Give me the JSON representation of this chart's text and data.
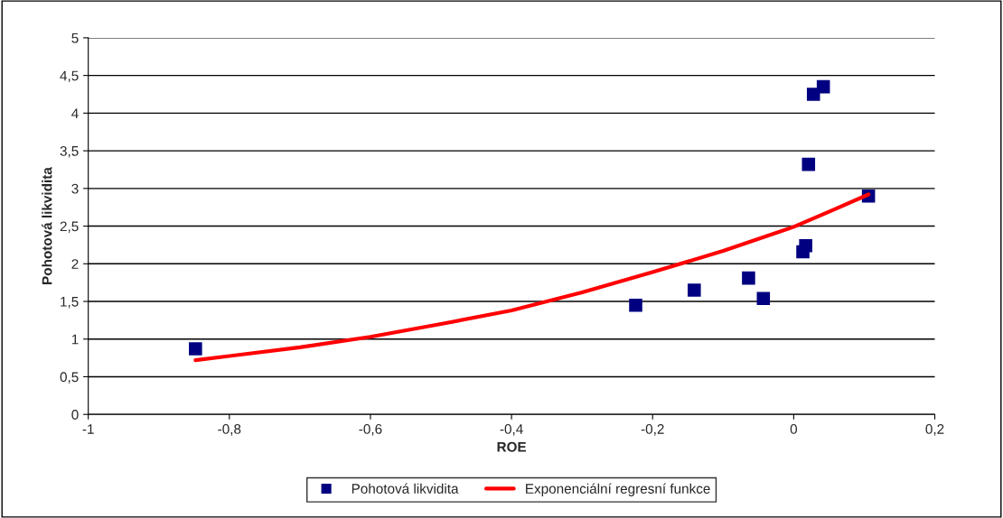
{
  "chart_data": {
    "type": "scatter",
    "xlabel": "ROE",
    "ylabel": "Pohotová likvidita",
    "xlim": [
      -1,
      0.2
    ],
    "xticks": [
      {
        "value": -1,
        "label": "-1"
      },
      {
        "value": -0.8,
        "label": "-0,8"
      },
      {
        "value": -0.6,
        "label": "-0,6"
      },
      {
        "value": -0.4,
        "label": "-0,4"
      },
      {
        "value": -0.2,
        "label": "-0,2"
      },
      {
        "value": 0,
        "label": "0"
      },
      {
        "value": 0.2,
        "label": "0,2"
      }
    ],
    "ylim": [
      0,
      5
    ],
    "yticks": [
      0,
      {
        "value": 0.5,
        "label": "0,5"
      },
      1,
      {
        "value": 1.5,
        "label": "1,5"
      },
      2,
      {
        "value": 2.5,
        "label": "2,5"
      },
      3,
      {
        "value": 3.5,
        "label": "3,5"
      },
      4,
      {
        "value": 4.5,
        "label": "4,5"
      },
      5
    ],
    "grid": "y",
    "legend": "bottom",
    "series": [
      {
        "name": "Pohotová likvidita",
        "marker": "square",
        "color": "#000080",
        "x": [
          -0.848,
          -0.224,
          -0.141,
          -0.064,
          -0.043,
          0.013,
          0.017,
          0.021,
          0.028,
          0.042,
          0.106
        ],
        "values": [
          0.87,
          1.45,
          1.65,
          1.81,
          1.54,
          2.16,
          2.24,
          3.32,
          4.25,
          4.35,
          2.9
        ]
      },
      {
        "name": "Exponenciální regresní funkce",
        "type": "line",
        "marker": "none",
        "line_style": "solid",
        "color": "#ff0000",
        "x": [
          -0.848,
          -0.7,
          -0.6,
          -0.5,
          -0.4,
          -0.3,
          -0.2,
          -0.1,
          0,
          0.05,
          0.106
        ],
        "values": [
          0.72,
          0.89,
          1.03,
          1.2,
          1.38,
          1.62,
          1.89,
          2.17,
          2.49,
          2.69,
          2.92
        ]
      }
    ]
  }
}
